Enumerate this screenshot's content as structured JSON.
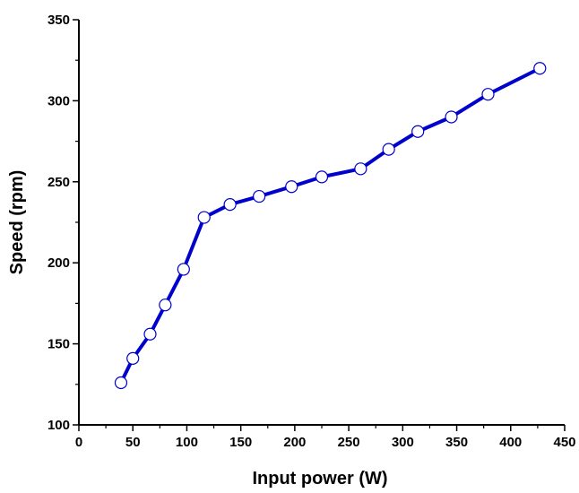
{
  "chart_data": {
    "type": "line",
    "title": "",
    "xlabel": "Input power (W)",
    "ylabel": "Speed (rpm)",
    "xlim": [
      0,
      450
    ],
    "ylim": [
      100,
      350
    ],
    "x_ticks": [
      0,
      50,
      100,
      150,
      200,
      250,
      300,
      350,
      400,
      450
    ],
    "y_ticks": [
      100,
      150,
      200,
      250,
      300,
      350
    ],
    "x_tick_labels": [
      "0",
      "50",
      "100",
      "150",
      "200",
      "250",
      "300",
      "350",
      "400",
      "450"
    ],
    "y_tick_labels": [
      "100",
      "150",
      "200",
      "250",
      "300",
      "350"
    ],
    "grid": false,
    "legend": "none",
    "line_color": "#0000cc",
    "marker": "open-circle",
    "series": [
      {
        "x": [
          39,
          50,
          66,
          80,
          97,
          116,
          140,
          167,
          197,
          225,
          261,
          287,
          314,
          345,
          379,
          427
        ],
        "y": [
          126,
          141,
          156,
          174,
          196,
          228,
          236,
          241,
          247,
          253,
          258,
          270,
          281,
          290,
          304,
          320
        ]
      }
    ]
  }
}
